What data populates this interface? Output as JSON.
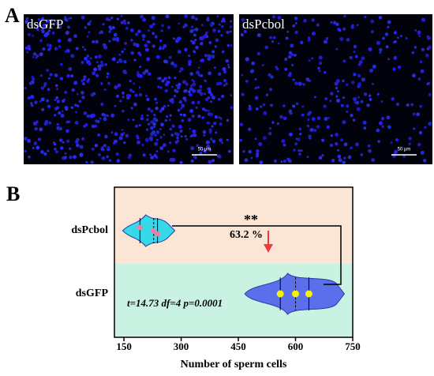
{
  "panel_a": {
    "label": "A",
    "images": [
      {
        "title": "dsGFP",
        "scale_bar": "50 μm"
      },
      {
        "title": "dsPcbol",
        "scale_bar": "50 μm"
      }
    ]
  },
  "chart_data": {
    "type": "violin",
    "panel_label": "B",
    "xlabel": "Number of sperm cells",
    "categories": [
      "dsPcbol",
      "dsGFP"
    ],
    "groups": [
      {
        "values": [
          192,
          228,
          238
        ],
        "color": "#36d9ea",
        "point_color": "#ec7fa6",
        "band_color": "#fbe6d6"
      },
      {
        "values": [
          560,
          600,
          635
        ],
        "color": "#5a6fe9",
        "point_color": "#f4f400",
        "band_color": "#c9f2e2"
      }
    ],
    "significance": "**",
    "reduction": "63.2 %",
    "stats": "t=14.73 df=4 p=0.0001",
    "xlim": [
      125,
      750
    ],
    "xticks": [
      150,
      300,
      450,
      600,
      750
    ]
  }
}
